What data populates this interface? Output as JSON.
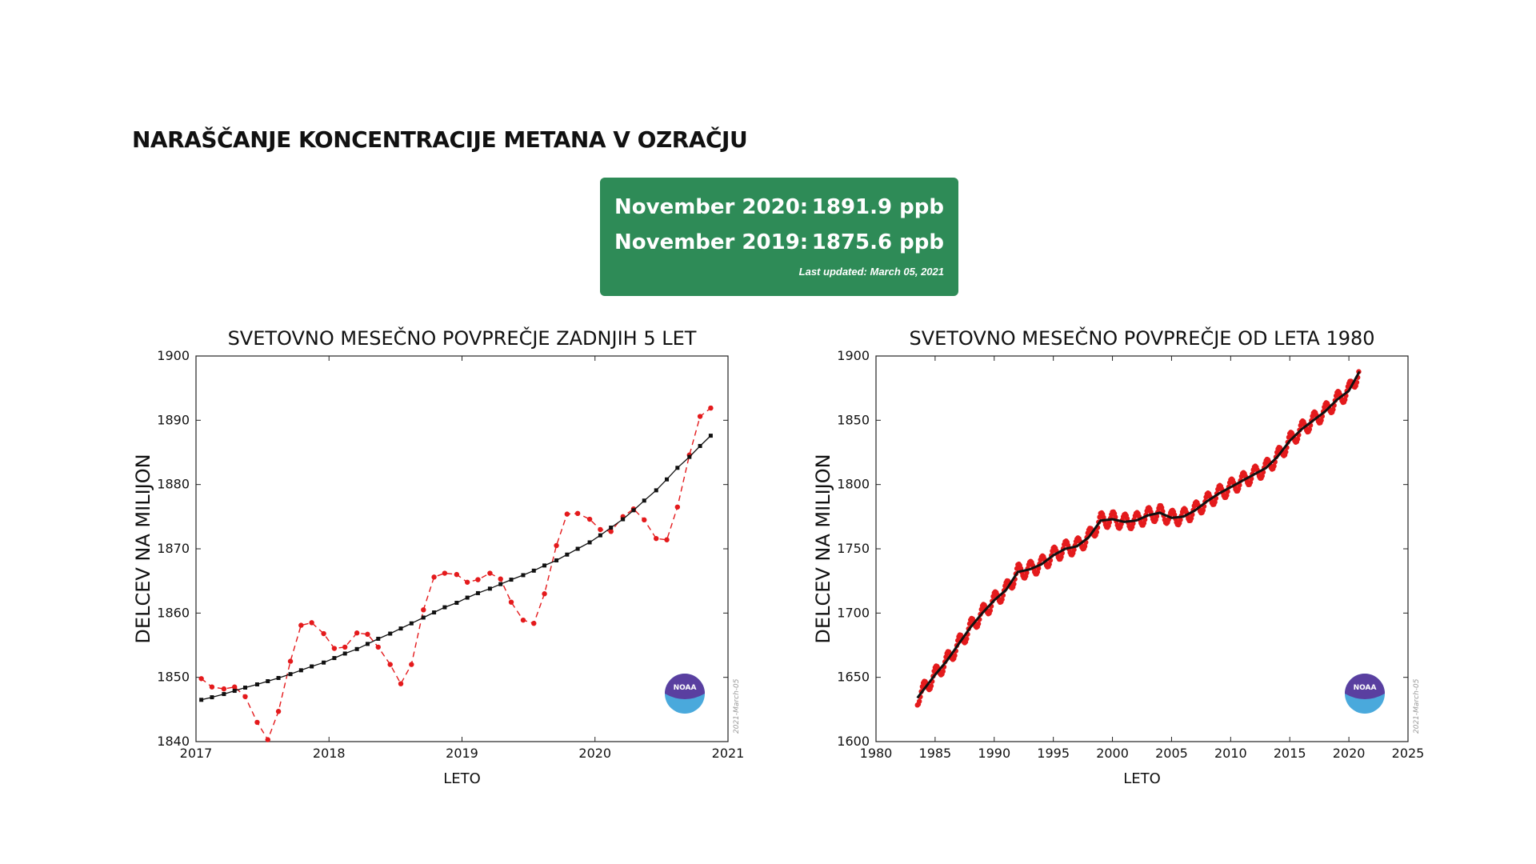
{
  "page": {
    "title": "NARAŠČANJE KONCENTRACIJE METANA V OZRAČJU"
  },
  "info": {
    "row1_label": "November 2020:",
    "row1_value": "1891.9 ppb",
    "row2_label": "November 2019:",
    "row2_value": "1875.6 ppb",
    "updated": "Last updated: March 05, 2021",
    "bg_color": "#2e8b57"
  },
  "colors": {
    "monthly": "#e41a1c",
    "trend": "#111111",
    "noaa_purple": "#5a3fa0",
    "noaa_blue": "#4aa9dc"
  },
  "chart_data": [
    {
      "type": "line",
      "title": "SVETOVNO MESEČNO POVPREČJE ZADNJIH 5 LET",
      "xlabel": "LETO",
      "ylabel": "DELCEV NA MILIJON",
      "xlim": [
        2017,
        2021
      ],
      "ylim": [
        1840,
        1900
      ],
      "xticks": [
        "2017",
        "2018",
        "2019",
        "2020",
        "2021"
      ],
      "yticks": [
        "1840",
        "1850",
        "1860",
        "1870",
        "1880",
        "1890",
        "1900"
      ],
      "stamp": "2021-March-05",
      "logo_text": "NOAA",
      "x": [
        2017.04,
        2017.12,
        2017.21,
        2017.29,
        2017.37,
        2017.46,
        2017.54,
        2017.62,
        2017.71,
        2017.79,
        2017.87,
        2017.96,
        2018.04,
        2018.12,
        2018.21,
        2018.29,
        2018.37,
        2018.46,
        2018.54,
        2018.62,
        2018.71,
        2018.79,
        2018.87,
        2018.96,
        2019.04,
        2019.12,
        2019.21,
        2019.29,
        2019.37,
        2019.46,
        2019.54,
        2019.62,
        2019.71,
        2019.79,
        2019.87,
        2019.96,
        2020.04,
        2020.12,
        2020.21,
        2020.29,
        2020.37,
        2020.46,
        2020.54,
        2020.62,
        2020.71,
        2020.79,
        2020.87
      ],
      "series": [
        {
          "name": "monthly",
          "style": "dashed",
          "values": [
            1849.8,
            1848.5,
            1848.2,
            1848.5,
            1847.0,
            1843.0,
            1840.3,
            1844.7,
            1852.5,
            1858.1,
            1858.5,
            1856.8,
            1854.5,
            1854.7,
            1856.9,
            1856.7,
            1854.7,
            1852.0,
            1849.0,
            1852.0,
            1860.5,
            1865.6,
            1866.2,
            1866.0,
            1864.8,
            1865.2,
            1866.2,
            1865.3,
            1861.7,
            1858.9,
            1858.4,
            1863.0,
            1870.5,
            1875.4,
            1875.5,
            1874.6,
            1873.0,
            1872.7,
            1875.0,
            1876.2,
            1874.5,
            1871.6,
            1871.4,
            1876.5,
            1884.6,
            1890.6,
            1891.9
          ]
        },
        {
          "name": "trend",
          "style": "solid",
          "values": [
            1846.5,
            1846.9,
            1847.4,
            1847.9,
            1848.4,
            1848.9,
            1849.4,
            1849.9,
            1850.5,
            1851.1,
            1851.7,
            1852.3,
            1853.0,
            1853.7,
            1854.4,
            1855.2,
            1856.0,
            1856.8,
            1857.6,
            1858.4,
            1859.3,
            1860.1,
            1860.9,
            1861.6,
            1862.4,
            1863.1,
            1863.8,
            1864.5,
            1865.2,
            1865.9,
            1866.6,
            1867.4,
            1868.2,
            1869.1,
            1870.0,
            1871.0,
            1872.1,
            1873.3,
            1874.6,
            1876.0,
            1877.5,
            1879.1,
            1880.8,
            1882.6,
            1884.3,
            1886.0,
            1887.6
          ]
        }
      ]
    },
    {
      "type": "line",
      "title": "SVETOVNO MESEČNO POVPREČJE OD LETA 1980",
      "xlabel": "LETO",
      "ylabel": "DELCEV NA MILIJON",
      "xlim": [
        1980,
        2025
      ],
      "ylim": [
        1600,
        1900
      ],
      "xticks": [
        "1980",
        "1985",
        "1990",
        "1995",
        "2000",
        "2005",
        "2010",
        "2015",
        "2020",
        "2025"
      ],
      "yticks": [
        "1600",
        "1650",
        "1700",
        "1750",
        "1800",
        "1850",
        "1900"
      ],
      "stamp": "2021-March-05",
      "logo_text": "NOAA",
      "x": [
        1983.5,
        1984.0,
        1985.0,
        1986.0,
        1987.0,
        1988.0,
        1989.0,
        1990.0,
        1991.0,
        1992.0,
        1993.0,
        1994.0,
        1995.0,
        1996.0,
        1997.0,
        1998.0,
        1999.0,
        2000.0,
        2001.0,
        2002.0,
        2003.0,
        2004.0,
        2005.0,
        2006.0,
        2007.0,
        2008.0,
        2009.0,
        2010.0,
        2011.0,
        2012.0,
        2013.0,
        2014.0,
        2015.0,
        2016.0,
        2017.0,
        2018.0,
        2019.0,
        2020.0,
        2020.9
      ],
      "series": [
        {
          "name": "trend",
          "style": "solid",
          "values": [
            1634,
            1640,
            1652,
            1663,
            1676,
            1689,
            1700,
            1710,
            1718,
            1732,
            1734,
            1738,
            1745,
            1750,
            1752,
            1759,
            1772,
            1773,
            1771,
            1772,
            1776,
            1778,
            1774,
            1775,
            1780,
            1787,
            1793,
            1798,
            1803,
            1808,
            1813,
            1822,
            1834,
            1843,
            1850,
            1857,
            1866,
            1873,
            1888
          ]
        },
        {
          "name": "monthly",
          "style": "points",
          "amplitude": 6
        }
      ]
    }
  ]
}
